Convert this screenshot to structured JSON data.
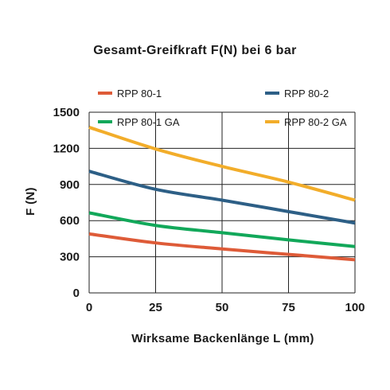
{
  "chart_data": {
    "type": "line",
    "title": "Gesamt-Greifkraft F(N) bei 6 bar",
    "xlabel": "Wirksame Backenlänge L (mm)",
    "ylabel": "F (N)",
    "xlim": [
      0,
      100
    ],
    "ylim": [
      0,
      1500
    ],
    "x_ticks": [
      "0",
      "25",
      "50",
      "75",
      "100"
    ],
    "y_ticks": [
      "0",
      "300",
      "600",
      "900",
      "1200",
      "1500"
    ],
    "grid": true,
    "legend_position": "top",
    "x": [
      0,
      25,
      50,
      75,
      100
    ],
    "series": [
      {
        "name": "RPP 80-1",
        "color": "#de5b38",
        "values": [
          490,
          415,
          365,
          320,
          275
        ]
      },
      {
        "name": "RPP 80-2",
        "color": "#2d5f86",
        "values": [
          1010,
          860,
          770,
          675,
          580
        ]
      },
      {
        "name": "RPP 80-1 GA",
        "color": "#12a85a",
        "values": [
          665,
          560,
          500,
          440,
          385
        ]
      },
      {
        "name": "RPP 80-2 GA",
        "color": "#f2ad2a",
        "values": [
          1375,
          1195,
          1050,
          920,
          770
        ]
      }
    ]
  }
}
